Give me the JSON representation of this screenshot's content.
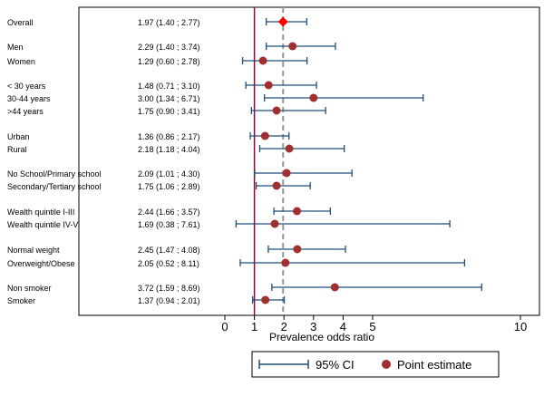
{
  "chart_data": {
    "type": "forest",
    "xlabel": "Prevalence odds ratio",
    "xlim": [
      0,
      10
    ],
    "xticks": [
      0,
      1,
      2,
      3,
      4,
      5,
      10
    ],
    "reference_line": 1,
    "overall_line": 1.97,
    "legend": {
      "ci_label": "95% CI",
      "point_label": "Point estimate",
      "position": "bottom"
    },
    "colors": {
      "ci": "#1f4e79",
      "point": "#a03030",
      "overall": "#ff0000",
      "ref": "#a0003c",
      "dashed": "#999999"
    },
    "rows": [
      {
        "label": "Overall",
        "ci_text": "1.97 (1.40 ; 2.77)",
        "est": 1.97,
        "lo": 1.4,
        "hi": 2.77,
        "overall": true
      },
      {
        "label": "Men",
        "ci_text": "2.29 (1.40 ; 3.74)",
        "est": 2.29,
        "lo": 1.4,
        "hi": 3.74
      },
      {
        "label": "Women",
        "ci_text": "1.29 (0.60 ; 2.78)",
        "est": 1.29,
        "lo": 0.6,
        "hi": 2.78
      },
      {
        "label": "< 30 years",
        "ci_text": "1.48 (0.71 ; 3.10)",
        "est": 1.48,
        "lo": 0.71,
        "hi": 3.1
      },
      {
        "label": "30-44 years",
        "ci_text": "3.00 (1.34 ; 6.71)",
        "est": 3.0,
        "lo": 1.34,
        "hi": 6.71
      },
      {
        "label": ">44 years",
        "ci_text": "1.75 (0.90 ; 3.41)",
        "est": 1.75,
        "lo": 0.9,
        "hi": 3.41
      },
      {
        "label": "Urban",
        "ci_text": "1.36 (0.86 ; 2.17)",
        "est": 1.36,
        "lo": 0.86,
        "hi": 2.17
      },
      {
        "label": "Rural",
        "ci_text": "2.18 (1.18 ; 4.04)",
        "est": 2.18,
        "lo": 1.18,
        "hi": 4.04
      },
      {
        "label": "No School/Primary school",
        "ci_text": "2.09 (1.01 ; 4.30)",
        "est": 2.09,
        "lo": 1.01,
        "hi": 4.3
      },
      {
        "label": "Secondary/Tertiary school",
        "ci_text": "1.75 (1.06 ; 2.89)",
        "est": 1.75,
        "lo": 1.06,
        "hi": 2.89
      },
      {
        "label": "Wealth quintile I-III",
        "ci_text": "2.44 (1.66 ; 3.57)",
        "est": 2.44,
        "lo": 1.66,
        "hi": 3.57
      },
      {
        "label": "Wealth quintile IV-V",
        "ci_text": "1.69 (0.38 ; 7.61)",
        "est": 1.69,
        "lo": 0.38,
        "hi": 7.61
      },
      {
        "label": "Normal weight",
        "ci_text": "2.45 (1.47 ; 4.08)",
        "est": 2.45,
        "lo": 1.47,
        "hi": 4.08
      },
      {
        "label": "Overweight/Obese",
        "ci_text": "2.05 (0.52 ; 8.11)",
        "est": 2.05,
        "lo": 0.52,
        "hi": 8.11
      },
      {
        "label": "Non smoker",
        "ci_text": "3.72 (1.59 ; 8.69)",
        "est": 3.72,
        "lo": 1.59,
        "hi": 8.69
      },
      {
        "label": "Smoker",
        "ci_text": "1.37 (0.94 ; 2.01)",
        "est": 1.37,
        "lo": 0.94,
        "hi": 2.01
      }
    ]
  }
}
